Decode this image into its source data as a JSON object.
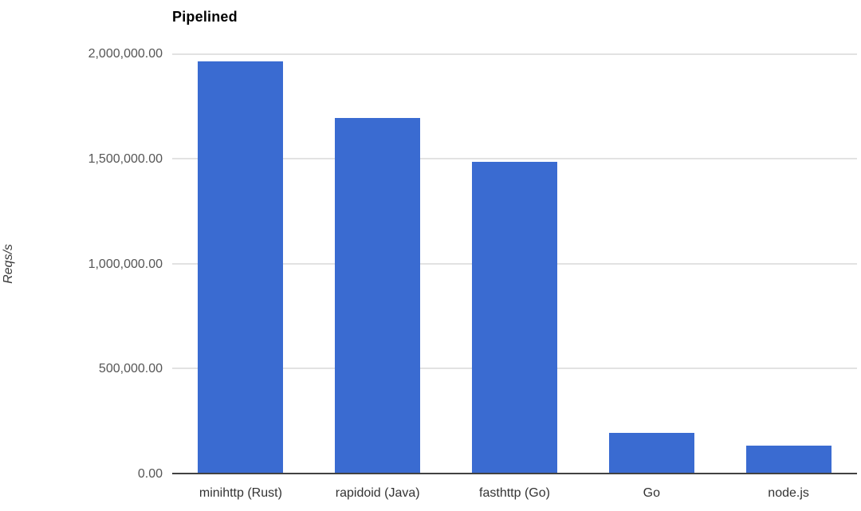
{
  "chart_data": {
    "type": "bar",
    "title": "Pipelined",
    "xlabel": "",
    "ylabel": "Reqs/s",
    "categories": [
      "minihttp (Rust)",
      "rapidoid (Java)",
      "fasthttp (Go)",
      "Go",
      "node.js"
    ],
    "values": [
      1965000,
      1695000,
      1485000,
      190000,
      130000
    ],
    "ylim": [
      0,
      2000000
    ],
    "ytick_interval": 500000,
    "ytick_labels": [
      "2,000,000.00",
      "1,500,000.00",
      "1,000,000.00",
      "500,000.00",
      "0.00"
    ],
    "grid": true,
    "legend": false,
    "colors": {
      "bar": "#3a6bd1",
      "gridline": "#e2e2e2",
      "axis_line": "#424242",
      "ytick_text": "#565656",
      "xtick_text": "#333333",
      "title_text": "#000000"
    }
  }
}
